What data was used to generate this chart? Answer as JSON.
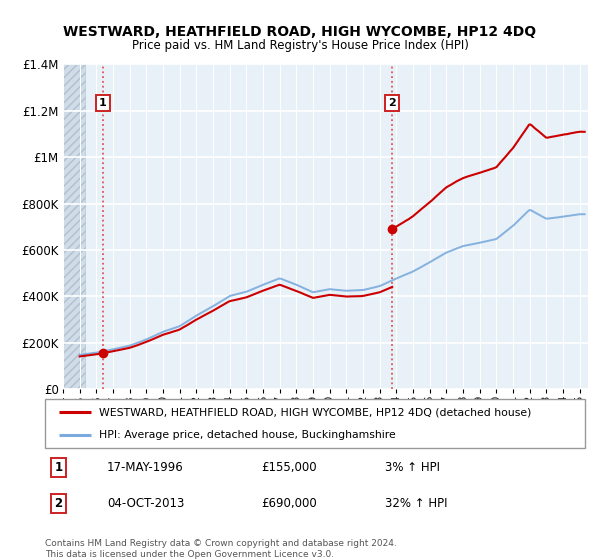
{
  "title": "WESTWARD, HEATHFIELD ROAD, HIGH WYCOMBE, HP12 4DQ",
  "subtitle": "Price paid vs. HM Land Registry's House Price Index (HPI)",
  "legend_line1": "WESTWARD, HEATHFIELD ROAD, HIGH WYCOMBE, HP12 4DQ (detached house)",
  "legend_line2": "HPI: Average price, detached house, Buckinghamshire",
  "footnote": "Contains HM Land Registry data © Crown copyright and database right 2024.\nThis data is licensed under the Open Government Licence v3.0.",
  "sale1_label": "1",
  "sale1_date": "17-MAY-1996",
  "sale1_price": "£155,000",
  "sale1_hpi": "3% ↑ HPI",
  "sale1_year": 1996.38,
  "sale1_value": 155000,
  "sale2_label": "2",
  "sale2_date": "04-OCT-2013",
  "sale2_price": "£690,000",
  "sale2_hpi": "32% ↑ HPI",
  "sale2_year": 2013.75,
  "sale2_value": 690000,
  "ylim": [
    0,
    1400000
  ],
  "xlim_start": 1994.0,
  "xlim_end": 2025.5,
  "hatch_end": 1995.3,
  "red_line_color": "#cc0000",
  "blue_line_color": "#7aaadd",
  "vline_color": "#dd4444",
  "plot_bg": "#e8f0f8",
  "hatch_bg": "#d0dce8"
}
